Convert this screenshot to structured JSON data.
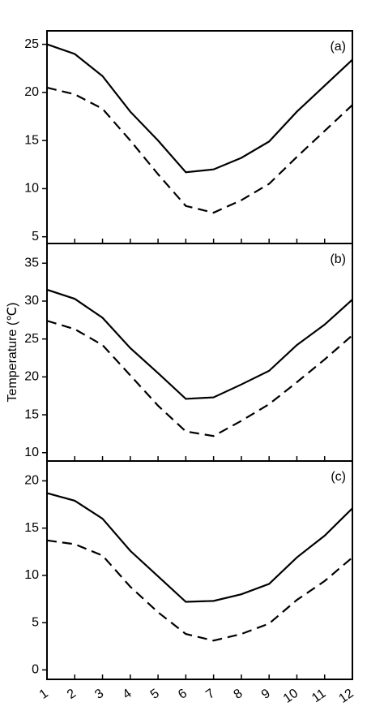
{
  "chart_data": [
    {
      "type": "line",
      "label": "(a)",
      "x": [
        1,
        2,
        3,
        4,
        5,
        6,
        7,
        8,
        9,
        10,
        11,
        12
      ],
      "series": [
        {
          "style": "solid",
          "color": "#000000",
          "values": [
            25,
            24,
            21.7,
            18,
            15,
            11.7,
            12,
            13.2,
            14.9,
            18,
            20.7,
            23.4
          ]
        },
        {
          "style": "dashed",
          "color": "#000000",
          "values": [
            20.5,
            19.8,
            18.3,
            15,
            11.5,
            8.2,
            7.5,
            8.8,
            10.5,
            13.3,
            16,
            18.7
          ]
        }
      ],
      "xlim": [
        1,
        12
      ],
      "xticks": [
        1,
        2,
        3,
        4,
        5,
        6,
        7,
        8,
        9,
        10,
        11,
        12
      ],
      "show_xtick_labels": false,
      "ylim": [
        4.3,
        26.4
      ],
      "yticks": [
        5,
        10,
        15,
        20,
        25
      ]
    },
    {
      "type": "line",
      "label": "(b)",
      "ylabel": "Temperature (℃)",
      "x": [
        1,
        2,
        3,
        4,
        5,
        6,
        7,
        8,
        9,
        10,
        11,
        12
      ],
      "series": [
        {
          "style": "solid",
          "color": "#000000",
          "values": [
            31.5,
            30.3,
            27.8,
            23.8,
            20.5,
            17.1,
            17.3,
            19,
            20.8,
            24.2,
            26.9,
            30.2
          ]
        },
        {
          "style": "dashed",
          "color": "#000000",
          "values": [
            27.4,
            26.3,
            24.2,
            20.2,
            16.2,
            12.8,
            12.2,
            14.2,
            16.4,
            19.3,
            22.3,
            25.5
          ]
        }
      ],
      "xlim": [
        1,
        12
      ],
      "xticks": [
        1,
        2,
        3,
        4,
        5,
        6,
        7,
        8,
        9,
        10,
        11,
        12
      ],
      "show_xtick_labels": false,
      "ylim": [
        8.9,
        37.6
      ],
      "yticks": [
        10,
        15,
        20,
        25,
        30,
        35
      ]
    },
    {
      "type": "line",
      "label": "(c)",
      "x": [
        1,
        2,
        3,
        4,
        5,
        6,
        7,
        8,
        9,
        10,
        11,
        12
      ],
      "series": [
        {
          "style": "solid",
          "color": "#000000",
          "values": [
            18.7,
            17.9,
            16,
            12.6,
            9.9,
            7.2,
            7.3,
            8,
            9.1,
            11.9,
            14.2,
            17.1
          ]
        },
        {
          "style": "dashed",
          "color": "#000000",
          "values": [
            13.7,
            13.3,
            12.1,
            8.8,
            6.1,
            3.8,
            3.1,
            3.8,
            4.9,
            7.4,
            9.4,
            11.9
          ]
        }
      ],
      "xlim": [
        1,
        12
      ],
      "xticks": [
        1,
        2,
        3,
        4,
        5,
        6,
        7,
        8,
        9,
        10,
        11,
        12
      ],
      "show_xtick_labels": true,
      "ylim": [
        -1,
        22.1
      ],
      "yticks": [
        0,
        5,
        10,
        15,
        20
      ]
    }
  ]
}
